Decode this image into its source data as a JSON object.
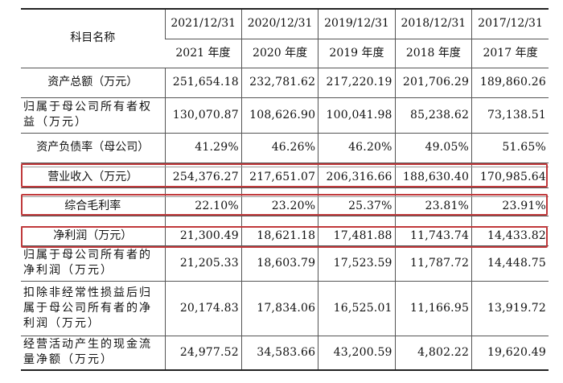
{
  "header": {
    "label": "科目名称",
    "dates": [
      "2021/12/31",
      "2020/12/31",
      "2019/12/31",
      "2018/12/31",
      "2017/12/31"
    ],
    "years": [
      "2021 年度",
      "2020 年度",
      "2019 年度",
      "2018 年度",
      "2017 年度"
    ]
  },
  "rows": [
    {
      "label": "资产总额（万元）",
      "values": [
        "251,654.18",
        "232,781.62",
        "217,220.19",
        "201,706.29",
        "189,860.26"
      ]
    },
    {
      "label": "归属于母公司所有者权益（万元）",
      "values": [
        "130,070.87",
        "108,626.90",
        "100,041.98",
        "85,238.62",
        "73,138.51"
      ]
    },
    {
      "label": "资产负债率（母公司）",
      "values": [
        "41.29%",
        "46.26%",
        "46.20%",
        "49.05%",
        "51.65%"
      ]
    },
    {
      "label": "营业收入（万元）",
      "values": [
        "254,376.27",
        "217,651.07",
        "206,316.66",
        "188,630.40",
        "170,985.64"
      ],
      "highlighted": true
    },
    {
      "label": "综合毛利率",
      "values": [
        "22.10%",
        "23.20%",
        "25.37%",
        "23.81%",
        "23.91%"
      ],
      "highlighted": true
    },
    {
      "label": "净利润（万元）",
      "values": [
        "21,300.49",
        "18,621.18",
        "17,481.88",
        "11,743.74",
        "14,433.82"
      ],
      "highlighted": true
    },
    {
      "label": "归属于母公司所有者的净利润（万元）",
      "values": [
        "21,205.33",
        "18,603.79",
        "17,523.59",
        "11,787.72",
        "14,448.75"
      ]
    },
    {
      "label": "扣除非经常性损益后归属于母公司所有者的净利润（万元）",
      "values": [
        "20,174.83",
        "17,834.06",
        "16,525.01",
        "11,166.95",
        "13,919.72"
      ]
    },
    {
      "label": "经营活动产生的现金流量净额（万元）",
      "values": [
        "24,977.52",
        "34,583.66",
        "43,200.59",
        "4,802.22",
        "19,620.49"
      ]
    }
  ],
  "highlight_color": "#c0393b"
}
